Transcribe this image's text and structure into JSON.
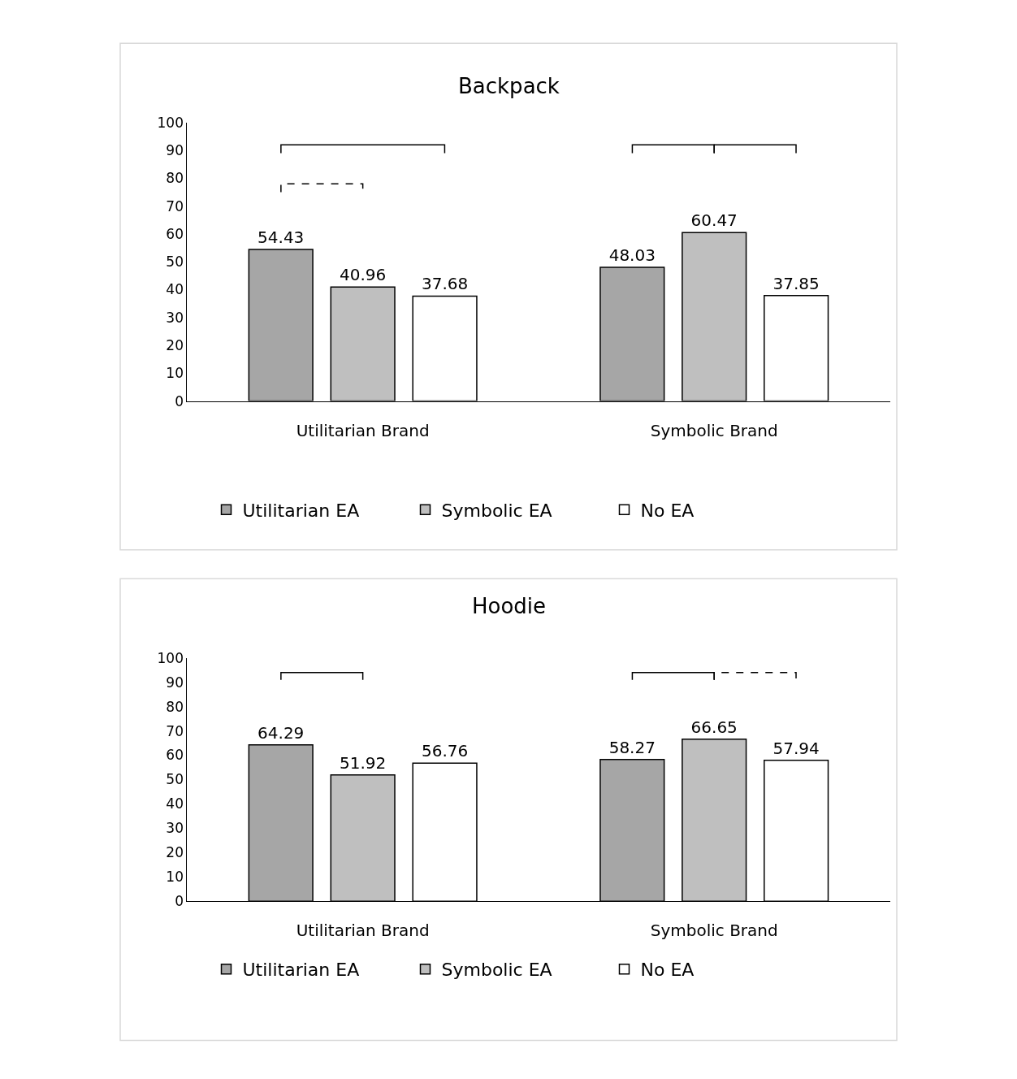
{
  "chart_data": [
    {
      "type": "bar",
      "title": "Backpack",
      "categories": [
        "Utilitarian Brand",
        "Symbolic Brand"
      ],
      "series": [
        {
          "name": "Utilitarian EA",
          "color": "#a6a6a6",
          "values": [
            54.43,
            48.03
          ]
        },
        {
          "name": "Symbolic EA",
          "color": "#bfbfbf",
          "values": [
            40.96,
            60.47
          ]
        },
        {
          "name": "No EA",
          "color": "#ffffff",
          "values": [
            37.68,
            37.85
          ]
        }
      ],
      "ylim": [
        0,
        100
      ],
      "yticks": [
        0,
        10,
        20,
        30,
        40,
        50,
        60,
        70,
        80,
        90,
        100
      ],
      "legend": "bottom",
      "data_labels": true
    },
    {
      "type": "bar",
      "title": "Hoodie",
      "categories": [
        "Utilitarian Brand",
        "Symbolic Brand"
      ],
      "series": [
        {
          "name": "Utilitarian EA",
          "color": "#a6a6a6",
          "values": [
            64.29,
            58.27
          ]
        },
        {
          "name": "Symbolic EA",
          "color": "#bfbfbf",
          "values": [
            51.92,
            66.65
          ]
        },
        {
          "name": "No EA",
          "color": "#ffffff",
          "values": [
            56.76,
            57.94
          ]
        }
      ],
      "ylim": [
        0,
        100
      ],
      "yticks": [
        0,
        10,
        20,
        30,
        40,
        50,
        60,
        70,
        80,
        90,
        100
      ],
      "legend": "bottom",
      "data_labels": true
    }
  ]
}
